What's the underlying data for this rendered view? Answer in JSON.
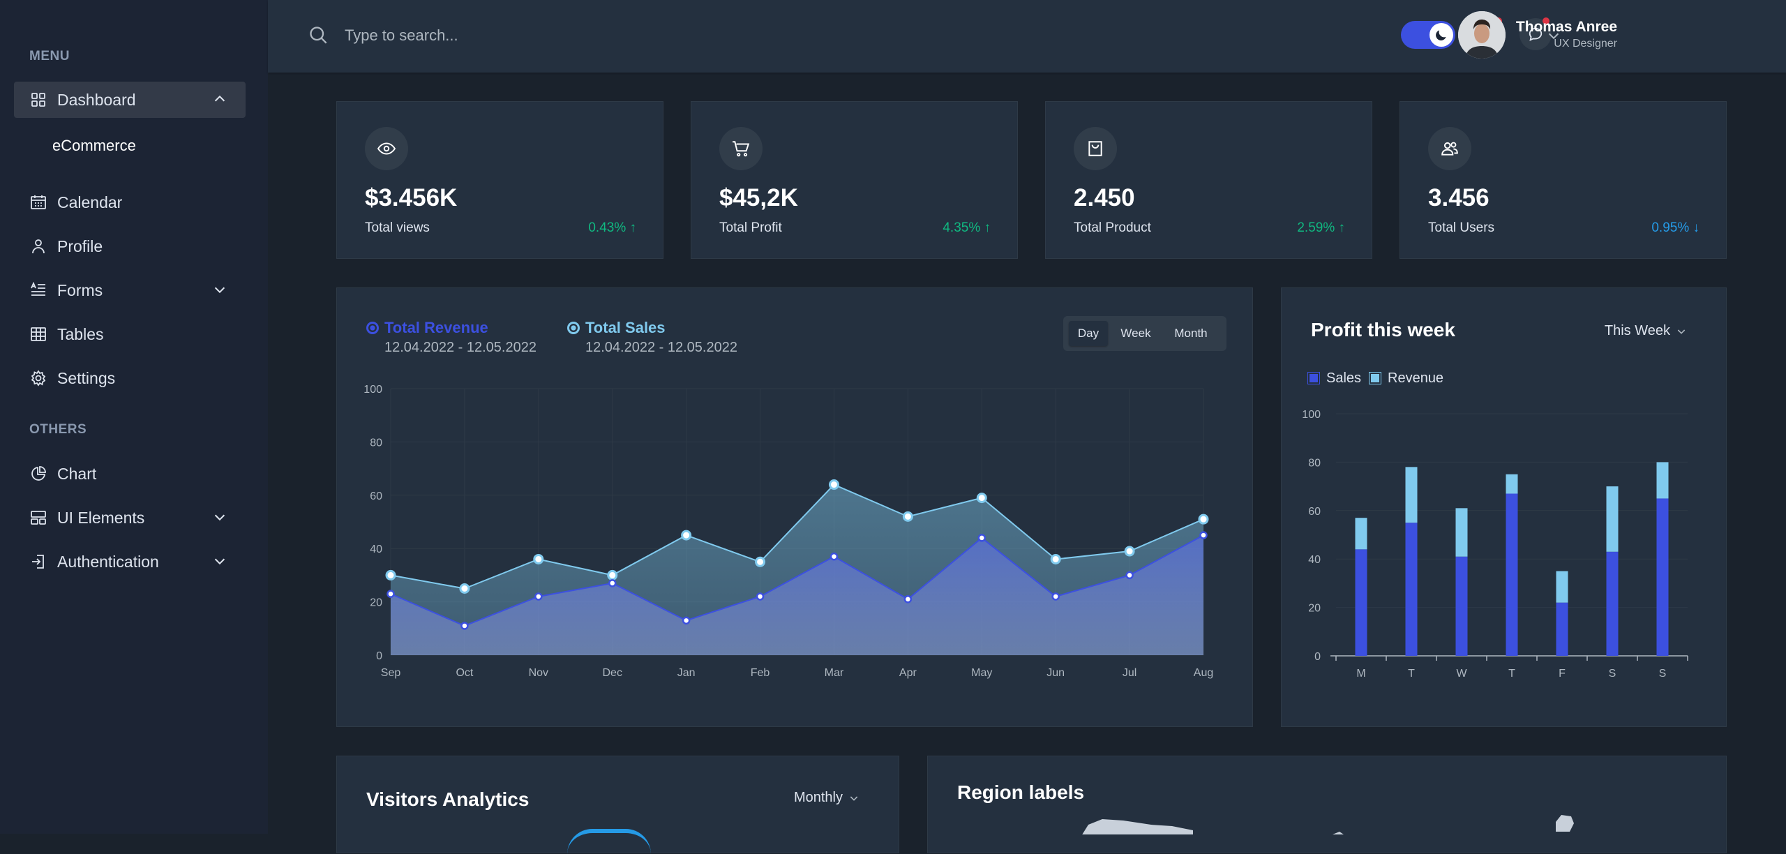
{
  "sidebar": {
    "menu_label": "MENU",
    "others_label": "OTHERS",
    "items": [
      {
        "label": "Dashboard",
        "icon": "grid-icon"
      },
      {
        "label": "eCommerce"
      },
      {
        "label": "Calendar",
        "icon": "calendar-icon"
      },
      {
        "label": "Profile",
        "icon": "user-icon"
      },
      {
        "label": "Forms",
        "icon": "forms-icon"
      },
      {
        "label": "Tables",
        "icon": "table-icon"
      },
      {
        "label": "Settings",
        "icon": "gear-icon"
      },
      {
        "label": "Chart",
        "icon": "pie-chart-icon"
      },
      {
        "label": "UI Elements",
        "icon": "layout-icon"
      },
      {
        "label": "Authentication",
        "icon": "sign-in-icon"
      }
    ]
  },
  "header": {
    "search_placeholder": "Type to search...",
    "user_name": "Thomas Anree",
    "user_role": "UX Designer"
  },
  "stats": [
    {
      "value": "$3.456K",
      "label": "Total views",
      "change": "0.43% ↑",
      "color": "#10b981",
      "icon": "eye-icon"
    },
    {
      "value": "$45,2K",
      "label": "Total Profit",
      "change": "4.35% ↑",
      "color": "#10b981",
      "icon": "cart-icon"
    },
    {
      "value": "2.450",
      "label": "Total Product",
      "change": "2.59% ↑",
      "color": "#10b981",
      "icon": "bag-icon"
    },
    {
      "value": "3.456",
      "label": "Total Users",
      "change": "0.95% ↓",
      "color": "#259ae6",
      "icon": "users-icon"
    }
  ],
  "revenue_card": {
    "legend": [
      {
        "title": "Total Revenue",
        "range": "12.04.2022 - 12.05.2022"
      },
      {
        "title": "Total Sales",
        "range": "12.04.2022 - 12.05.2022"
      }
    ],
    "tabs": [
      "Day",
      "Week",
      "Month"
    ],
    "active_tab": "Day"
  },
  "profit_card": {
    "title": "Profit this week",
    "dropdown": "This Week",
    "legend": [
      "Sales",
      "Revenue"
    ]
  },
  "visitors_card": {
    "title": "Visitors Analytics",
    "dropdown": "Monthly"
  },
  "region_card": {
    "title": "Region labels"
  },
  "colors": {
    "primary": "#3c50e0",
    "secondary": "#80caee",
    "success": "#10b981",
    "info": "#259ae6"
  },
  "chart_data": [
    {
      "type": "area",
      "categories": [
        "Sep",
        "Oct",
        "Nov",
        "Dec",
        "Jan",
        "Feb",
        "Mar",
        "Apr",
        "May",
        "Jun",
        "Jul",
        "Aug"
      ],
      "series": [
        {
          "name": "Total Revenue",
          "values": [
            23,
            11,
            22,
            27,
            13,
            22,
            37,
            21,
            44,
            22,
            30,
            45
          ]
        },
        {
          "name": "Total Sales",
          "values": [
            30,
            25,
            36,
            30,
            45,
            35,
            64,
            52,
            59,
            36,
            39,
            51
          ]
        }
      ],
      "ylim": [
        0,
        100
      ],
      "yticks": [
        0,
        20,
        40,
        60,
        80,
        100
      ],
      "grid": true
    },
    {
      "type": "bar",
      "stacked": true,
      "categories": [
        "M",
        "T",
        "W",
        "T",
        "F",
        "S",
        "S"
      ],
      "series": [
        {
          "name": "Sales",
          "values": [
            44,
            55,
            41,
            67,
            22,
            43,
            65
          ]
        },
        {
          "name": "Revenue",
          "values": [
            13,
            23,
            20,
            8,
            13,
            27,
            15
          ]
        }
      ],
      "ylim": [
        0,
        100
      ],
      "yticks": [
        0,
        20,
        40,
        60,
        80,
        100
      ],
      "legend": "top-left"
    }
  ]
}
